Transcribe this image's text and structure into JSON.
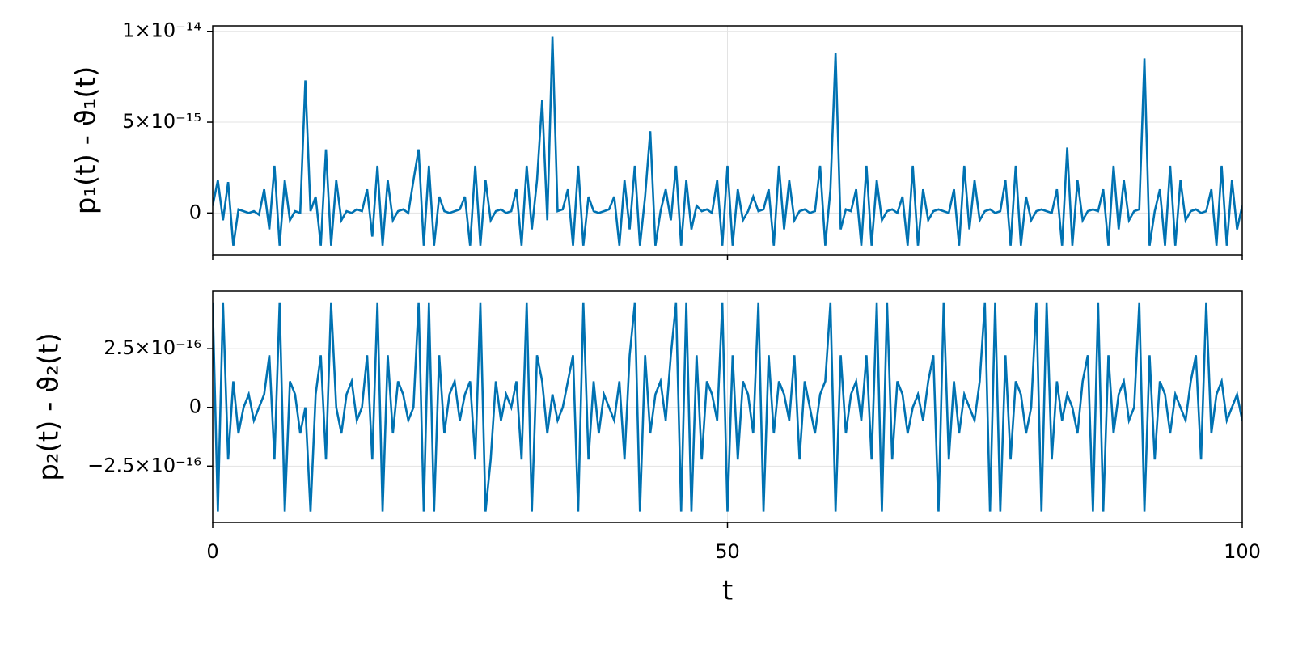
{
  "chart_data": [
    {
      "type": "line",
      "ylabel": "p₁(t) - ϑ₁(t)",
      "color": "#0072b2",
      "grid": true,
      "xtick_labels": false,
      "xlim": [
        0,
        100
      ],
      "xticks": [
        0,
        50,
        100
      ],
      "ylim": [
        -2.3e-15,
        1.03e-14
      ],
      "yticks": [
        0,
        {
          "value": 5e-15,
          "label": "5×10⁻¹⁵"
        },
        {
          "value": 1e-14,
          "label": "1×10⁻¹⁴"
        }
      ],
      "x": [
        0,
        0.5,
        1,
        1.5,
        2,
        2.5,
        3,
        3.5,
        4,
        4.5,
        5,
        5.5,
        6,
        6.5,
        7,
        7.5,
        8,
        8.5,
        9,
        9.5,
        10,
        10.5,
        11,
        11.5,
        12,
        12.5,
        13,
        13.5,
        14,
        14.5,
        15,
        15.5,
        16,
        16.5,
        17,
        17.5,
        18,
        18.5,
        19,
        19.5,
        20,
        20.5,
        21,
        21.5,
        22,
        22.5,
        23,
        23.5,
        24,
        24.5,
        25,
        25.5,
        26,
        26.5,
        27,
        27.5,
        28,
        28.5,
        29,
        29.5,
        30,
        30.5,
        31,
        31.5,
        32,
        32.5,
        33,
        33.5,
        34,
        34.5,
        35,
        35.5,
        36,
        36.5,
        37,
        37.5,
        38,
        38.5,
        39,
        39.5,
        40,
        40.5,
        41,
        41.5,
        42,
        42.5,
        43,
        43.5,
        44,
        44.5,
        45,
        45.5,
        46,
        46.5,
        47,
        47.5,
        48,
        48.5,
        49,
        49.5,
        50,
        50.5,
        51,
        51.5,
        52,
        52.5,
        53,
        53.5,
        54,
        54.5,
        55,
        55.5,
        56,
        56.5,
        57,
        57.5,
        58,
        58.5,
        59,
        59.5,
        60,
        60.5,
        61,
        61.5,
        62,
        62.5,
        63,
        63.5,
        64,
        64.5,
        65,
        65.5,
        66,
        66.5,
        67,
        67.5,
        68,
        68.5,
        69,
        69.5,
        70,
        70.5,
        71,
        71.5,
        72,
        72.5,
        73,
        73.5,
        74,
        74.5,
        75,
        75.5,
        76,
        76.5,
        77,
        77.5,
        78,
        78.5,
        79,
        79.5,
        80,
        80.5,
        81,
        81.5,
        82,
        82.5,
        83,
        83.5,
        84,
        84.5,
        85,
        85.5,
        86,
        86.5,
        87,
        87.5,
        88,
        88.5,
        89,
        89.5,
        90,
        90.5,
        91,
        91.5,
        92,
        92.5,
        93,
        93.5,
        94,
        94.5,
        95,
        95.5,
        96,
        96.5,
        97,
        97.5,
        98,
        98.5,
        99,
        99.5,
        100
      ],
      "values": [
        4e-16,
        1.8e-15,
        -4e-16,
        1.7e-15,
        -1.8e-15,
        2e-16,
        1e-16,
        0,
        1e-16,
        -1e-16,
        1.3e-15,
        -9e-16,
        2.6e-15,
        -1.8e-15,
        1.8e-15,
        -4e-16,
        1e-16,
        0,
        7.3e-15,
        1e-16,
        9e-16,
        -1.8e-15,
        3.5e-15,
        -1.8e-15,
        1.8e-15,
        -4e-16,
        1e-16,
        0,
        2e-16,
        1e-16,
        1.3e-15,
        -1.3e-15,
        2.6e-15,
        -1.8e-15,
        1.8e-15,
        -4e-16,
        1e-16,
        2e-16,
        0,
        1.8e-15,
        3.5e-15,
        -1.8e-15,
        2.6e-15,
        -1.8e-15,
        9e-16,
        1e-16,
        0,
        1e-16,
        2e-16,
        9e-16,
        -1.8e-15,
        2.6e-15,
        -1.8e-15,
        1.8e-15,
        -4e-16,
        1e-16,
        2e-16,
        0,
        1e-16,
        1.3e-15,
        -1.8e-15,
        2.6e-15,
        -9e-16,
        1.8e-15,
        6.2e-15,
        -4e-16,
        9.7e-15,
        1e-16,
        2e-16,
        1.3e-15,
        -1.8e-15,
        2.6e-15,
        -1.8e-15,
        9e-16,
        1e-16,
        0,
        1e-16,
        2e-16,
        9e-16,
        -1.8e-15,
        1.8e-15,
        -9e-16,
        2.6e-15,
        -1.8e-15,
        9e-16,
        4.5e-15,
        -1.8e-15,
        1e-16,
        1.3e-15,
        -4e-16,
        2.6e-15,
        -1.8e-15,
        1.8e-15,
        -9e-16,
        4e-16,
        1e-16,
        2e-16,
        0,
        1.8e-15,
        -1.8e-15,
        2.6e-15,
        -1.8e-15,
        1.3e-15,
        -4e-16,
        1e-16,
        9e-16,
        1e-16,
        2e-16,
        1.3e-15,
        -1.8e-15,
        2.6e-15,
        -9e-16,
        1.8e-15,
        -4e-16,
        1e-16,
        2e-16,
        0,
        1e-16,
        2.6e-15,
        -1.8e-15,
        1.3e-15,
        8.8e-15,
        -9e-16,
        2e-16,
        1e-16,
        1.3e-15,
        -1.8e-15,
        2.6e-15,
        -1.8e-15,
        1.8e-15,
        -4e-16,
        1e-16,
        2e-16,
        0,
        9e-16,
        -1.8e-15,
        2.6e-15,
        -1.8e-15,
        1.3e-15,
        -4e-16,
        1e-16,
        2e-16,
        1e-16,
        0,
        1.3e-15,
        -1.8e-15,
        2.6e-15,
        -9e-16,
        1.8e-15,
        -4e-16,
        1e-16,
        2e-16,
        0,
        1e-16,
        1.8e-15,
        -1.8e-15,
        2.6e-15,
        -1.8e-15,
        9e-16,
        -4e-16,
        1e-16,
        2e-16,
        1e-16,
        0,
        1.3e-15,
        -1.8e-15,
        3.6e-15,
        -1.8e-15,
        1.8e-15,
        -4e-16,
        1e-16,
        2e-16,
        1e-16,
        1.3e-15,
        -1.8e-15,
        2.6e-15,
        -9e-16,
        1.8e-15,
        -4e-16,
        1e-16,
        2e-16,
        8.5e-15,
        -1.8e-15,
        1e-16,
        1.3e-15,
        -1.8e-15,
        2.6e-15,
        -1.8e-15,
        1.8e-15,
        -4e-16,
        1e-16,
        2e-16,
        0,
        1e-16,
        1.3e-15,
        -1.8e-15,
        2.6e-15,
        -1.8e-15,
        1.8e-15,
        -9e-16,
        4e-16
      ]
    },
    {
      "type": "line",
      "ylabel": "p₂(t) - ϑ₂(t)",
      "xlabel": "t",
      "color": "#0072b2",
      "grid": true,
      "xtick_labels": true,
      "xlim": [
        0,
        100
      ],
      "xticks": [
        0,
        50,
        100
      ],
      "ylim": [
        -4.9e-16,
        4.95e-16
      ],
      "yticks": [
        {
          "value": -2.5e-16,
          "label": "−2.5×10⁻¹⁶"
        },
        0,
        {
          "value": 2.5e-16,
          "label": "2.5×10⁻¹⁶"
        }
      ],
      "x": [
        0,
        0.5,
        1,
        1.5,
        2,
        2.5,
        3,
        3.5,
        4,
        4.5,
        5,
        5.5,
        6,
        6.5,
        7,
        7.5,
        8,
        8.5,
        9,
        9.5,
        10,
        10.5,
        11,
        11.5,
        12,
        12.5,
        13,
        13.5,
        14,
        14.5,
        15,
        15.5,
        16,
        16.5,
        17,
        17.5,
        18,
        18.5,
        19,
        19.5,
        20,
        20.5,
        21,
        21.5,
        22,
        22.5,
        23,
        23.5,
        24,
        24.5,
        25,
        25.5,
        26,
        26.5,
        27,
        27.5,
        28,
        28.5,
        29,
        29.5,
        30,
        30.5,
        31,
        31.5,
        32,
        32.5,
        33,
        33.5,
        34,
        34.5,
        35,
        35.5,
        36,
        36.5,
        37,
        37.5,
        38,
        38.5,
        39,
        39.5,
        40,
        40.5,
        41,
        41.5,
        42,
        42.5,
        43,
        43.5,
        44,
        44.5,
        45,
        45.5,
        46,
        46.5,
        47,
        47.5,
        48,
        48.5,
        49,
        49.5,
        50,
        50.5,
        51,
        51.5,
        52,
        52.5,
        53,
        53.5,
        54,
        54.5,
        55,
        55.5,
        56,
        56.5,
        57,
        57.5,
        58,
        58.5,
        59,
        59.5,
        60,
        60.5,
        61,
        61.5,
        62,
        62.5,
        63,
        63.5,
        64,
        64.5,
        65,
        65.5,
        66,
        66.5,
        67,
        67.5,
        68,
        68.5,
        69,
        69.5,
        70,
        70.5,
        71,
        71.5,
        72,
        72.5,
        73,
        73.5,
        74,
        74.5,
        75,
        75.5,
        76,
        76.5,
        77,
        77.5,
        78,
        78.5,
        79,
        79.5,
        80,
        80.5,
        81,
        81.5,
        82,
        82.5,
        83,
        83.5,
        84,
        84.5,
        85,
        85.5,
        86,
        86.5,
        87,
        87.5,
        88,
        88.5,
        89,
        89.5,
        90,
        90.5,
        91,
        91.5,
        92,
        92.5,
        93,
        93.5,
        94,
        94.5,
        95,
        95.5,
        96,
        96.5,
        97,
        97.5,
        98,
        98.5,
        99,
        99.5,
        100
      ],
      "values": [
        4.44e-16,
        -4.44e-16,
        4.44e-16,
        -2.22e-16,
        1.11e-16,
        -1.11e-16,
        0,
        5.55e-17,
        -5.55e-17,
        0,
        5.55e-17,
        2.22e-16,
        -2.22e-16,
        4.44e-16,
        -4.44e-16,
        1.11e-16,
        5.55e-17,
        -1.11e-16,
        0,
        -4.44e-16,
        5.55e-17,
        2.22e-16,
        -2.22e-16,
        4.44e-16,
        0,
        -1.11e-16,
        5.55e-17,
        1.11e-16,
        -5.55e-17,
        0,
        2.22e-16,
        -2.22e-16,
        4.44e-16,
        -4.44e-16,
        2.22e-16,
        -1.11e-16,
        1.11e-16,
        5.55e-17,
        -5.55e-17,
        0,
        4.44e-16,
        -4.44e-16,
        4.44e-16,
        -4.44e-16,
        2.22e-16,
        -1.11e-16,
        5.55e-17,
        1.11e-16,
        -5.55e-17,
        5.55e-17,
        1.11e-16,
        -2.22e-16,
        4.44e-16,
        -4.44e-16,
        -2.22e-16,
        1.11e-16,
        -5.55e-17,
        5.55e-17,
        0,
        1.11e-16,
        -2.22e-16,
        4.44e-16,
        -4.44e-16,
        2.22e-16,
        1.11e-16,
        -1.11e-16,
        5.55e-17,
        -5.55e-17,
        0,
        1.11e-16,
        2.22e-16,
        -4.44e-16,
        4.44e-16,
        -2.22e-16,
        1.11e-16,
        -1.11e-16,
        5.55e-17,
        0,
        -5.55e-17,
        1.11e-16,
        -2.22e-16,
        2.22e-16,
        4.44e-16,
        -4.44e-16,
        2.22e-16,
        -1.11e-16,
        5.55e-17,
        1.11e-16,
        -5.55e-17,
        2.22e-16,
        4.44e-16,
        -4.44e-16,
        4.44e-16,
        -4.44e-16,
        2.22e-16,
        -2.22e-16,
        1.11e-16,
        5.55e-17,
        -5.55e-17,
        4.44e-16,
        -4.44e-16,
        2.22e-16,
        -2.22e-16,
        1.11e-16,
        5.55e-17,
        -1.11e-16,
        4.44e-16,
        -4.44e-16,
        2.22e-16,
        -1.11e-16,
        1.11e-16,
        5.55e-17,
        -5.55e-17,
        2.22e-16,
        -2.22e-16,
        1.11e-16,
        0,
        -1.11e-16,
        5.55e-17,
        1.11e-16,
        4.44e-16,
        -4.44e-16,
        2.22e-16,
        -1.11e-16,
        5.55e-17,
        1.11e-16,
        -5.55e-17,
        2.22e-16,
        -2.22e-16,
        4.44e-16,
        -4.44e-16,
        4.44e-16,
        -2.22e-16,
        1.11e-16,
        5.55e-17,
        -1.11e-16,
        0,
        5.55e-17,
        -5.55e-17,
        1.11e-16,
        2.22e-16,
        -4.44e-16,
        4.44e-16,
        -2.22e-16,
        1.11e-16,
        -1.11e-16,
        5.55e-17,
        0,
        -5.55e-17,
        1.11e-16,
        4.44e-16,
        -4.44e-16,
        4.44e-16,
        -4.44e-16,
        2.22e-16,
        -2.22e-16,
        1.11e-16,
        5.55e-17,
        -1.11e-16,
        0,
        4.44e-16,
        -4.44e-16,
        4.44e-16,
        -2.22e-16,
        1.11e-16,
        -5.55e-17,
        5.55e-17,
        0,
        -1.11e-16,
        1.11e-16,
        2.22e-16,
        -4.44e-16,
        4.44e-16,
        -4.44e-16,
        2.22e-16,
        -1.11e-16,
        5.55e-17,
        1.11e-16,
        -5.55e-17,
        0,
        4.44e-16,
        -4.44e-16,
        2.22e-16,
        -2.22e-16,
        1.11e-16,
        5.55e-17,
        -1.11e-16,
        5.55e-17,
        0,
        -5.55e-17,
        1.11e-16,
        2.22e-16,
        -2.22e-16,
        4.44e-16,
        -1.11e-16,
        5.55e-17,
        1.11e-16,
        -5.55e-17,
        0,
        5.55e-17,
        -5.55e-17
      ]
    }
  ]
}
